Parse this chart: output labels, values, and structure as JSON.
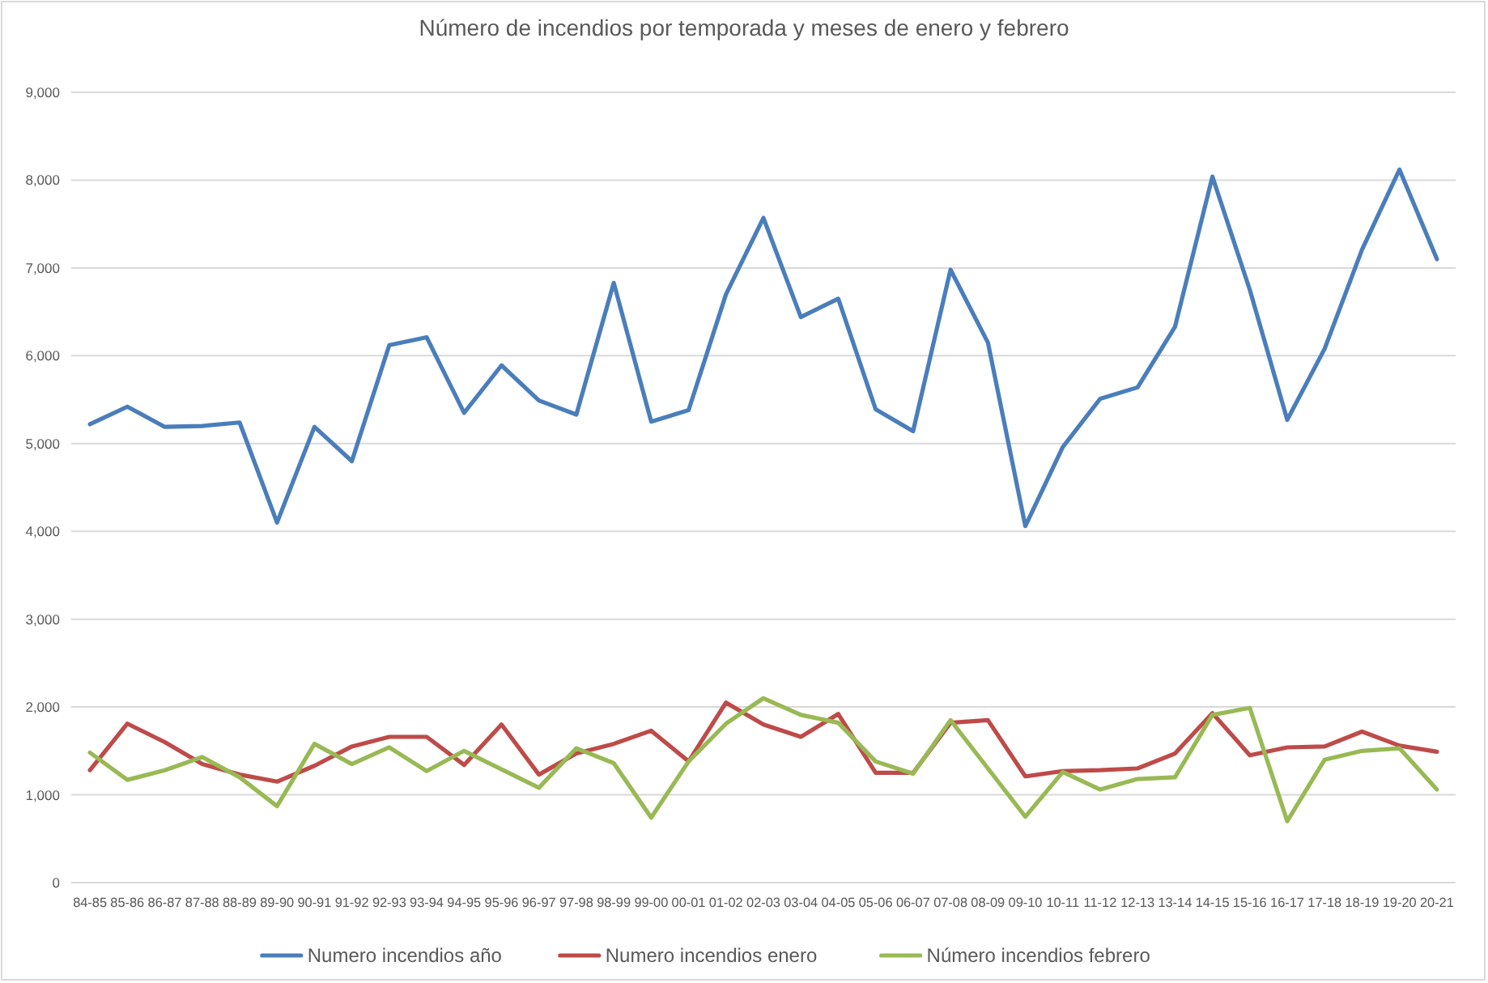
{
  "chart_data": {
    "type": "line",
    "title": "Número de incendios por temporada y meses de enero y febrero",
    "categories": [
      "84-85",
      "85-86",
      "86-87",
      "87-88",
      "88-89",
      "89-90",
      "90-91",
      "91-92",
      "92-93",
      "93-94",
      "94-95",
      "95-96",
      "96-97",
      "97-98",
      "98-99",
      "99-00",
      "00-01",
      "01-02",
      "02-03",
      "03-04",
      "04-05",
      "05-06",
      "06-07",
      "07-08",
      "08-09",
      "09-10",
      "10-11",
      "11-12",
      "12-13",
      "13-14",
      "14-15",
      "15-16",
      "16-17",
      "17-18",
      "18-19",
      "19-20",
      "20-21"
    ],
    "series": [
      {
        "name": "Numero incendios año",
        "color": "#4a7ebb",
        "values": [
          5220,
          5420,
          5190,
          5200,
          5240,
          4100,
          5190,
          4800,
          6120,
          6210,
          5350,
          5890,
          5490,
          5330,
          6830,
          5250,
          5380,
          6700,
          7570,
          6440,
          6650,
          5390,
          5140,
          6980,
          6150,
          4060,
          4960,
          5510,
          5640,
          6330,
          8040,
          6750,
          5270,
          6080,
          7210,
          8120,
          7100
        ]
      },
      {
        "name": "Numero incendios enero",
        "color": "#be4b48",
        "values": [
          1280,
          1810,
          1600,
          1350,
          1230,
          1150,
          1330,
          1550,
          1660,
          1660,
          1340,
          1800,
          1230,
          1470,
          1580,
          1730,
          1380,
          2050,
          1800,
          1660,
          1920,
          1250,
          1250,
          1820,
          1850,
          1210,
          1270,
          1280,
          1300,
          1470,
          1930,
          1450,
          1540,
          1550,
          1720,
          1560,
          1490
        ]
      },
      {
        "name": "Número incendios febrero",
        "color": "#98b954",
        "values": [
          1480,
          1170,
          1280,
          1430,
          1200,
          870,
          1580,
          1350,
          1540,
          1270,
          1500,
          1290,
          1080,
          1530,
          1360,
          740,
          1380,
          1810,
          2100,
          1910,
          1820,
          1380,
          1240,
          1850,
          1300,
          750,
          1260,
          1060,
          1180,
          1200,
          1910,
          1990,
          700,
          1400,
          1500,
          1530,
          1060
        ]
      }
    ],
    "ylim": [
      0,
      9000
    ],
    "yticks": [
      {
        "value": 0,
        "label": "0"
      },
      {
        "value": 1000,
        "label": "1,000"
      },
      {
        "value": 2000,
        "label": "2,000"
      },
      {
        "value": 3000,
        "label": "3,000"
      },
      {
        "value": 4000,
        "label": "4,000"
      },
      {
        "value": 5000,
        "label": "5,000"
      },
      {
        "value": 6000,
        "label": "6,000"
      },
      {
        "value": 7000,
        "label": "7,000"
      },
      {
        "value": 8000,
        "label": "8,000"
      },
      {
        "value": 9000,
        "label": "9,000"
      }
    ],
    "grid": "y",
    "legend": "bottom"
  }
}
